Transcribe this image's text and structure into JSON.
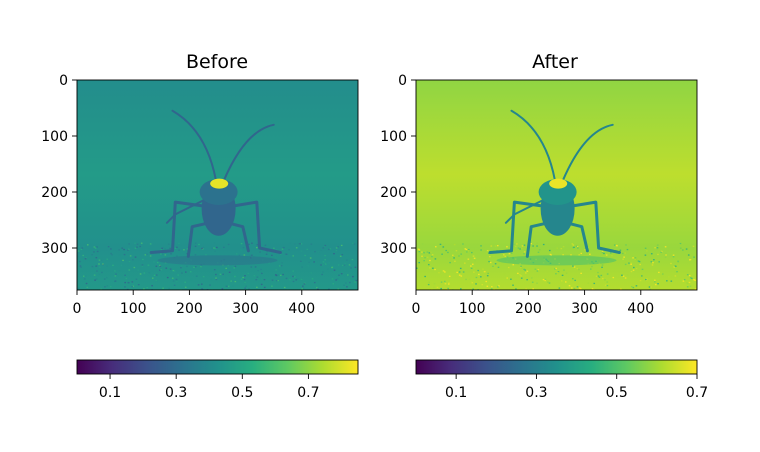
{
  "chart_data": [
    {
      "type": "heatmap",
      "title": "Before",
      "xlabel": "",
      "ylabel": "",
      "xlim": [
        0,
        500
      ],
      "ylim": [
        375,
        0
      ],
      "xticks": [
        0,
        100,
        200,
        300,
        400
      ],
      "yticks": [
        0,
        100,
        200,
        300
      ],
      "colormap": "viridis",
      "colorbar": {
        "orientation": "horizontal",
        "range": [
          0.0,
          0.85
        ],
        "ticks": [
          0.1,
          0.3,
          0.5,
          0.7
        ]
      },
      "background_level": 0.43,
      "subject_level": 0.28,
      "highlight_level": 0.82
    },
    {
      "type": "heatmap",
      "title": "After",
      "xlabel": "",
      "ylabel": "",
      "xlim": [
        0,
        500
      ],
      "ylim": [
        375,
        0
      ],
      "xticks": [
        0,
        100,
        200,
        300,
        400
      ],
      "yticks": [
        0,
        100,
        200,
        300
      ],
      "colormap": "viridis",
      "colorbar": {
        "orientation": "horizontal",
        "range": [
          0.0,
          0.7
        ],
        "ticks": [
          0.1,
          0.3,
          0.5,
          0.7
        ]
      },
      "background_level": 0.6,
      "subject_level": 0.32,
      "highlight_level": 0.68
    }
  ]
}
